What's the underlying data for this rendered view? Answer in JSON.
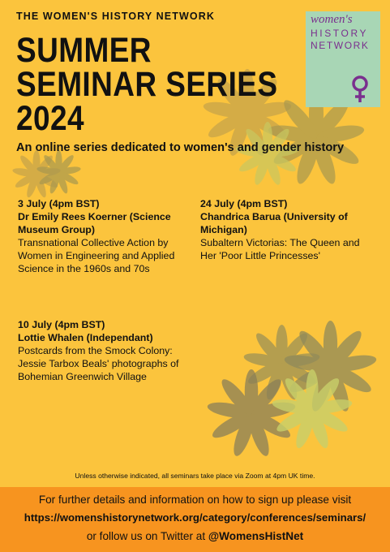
{
  "header": {
    "organization": "THE WOMEN'S HISTORY NETWORK",
    "title_lines": [
      "SUMMER",
      "SEMINAR SERIES",
      "2024"
    ],
    "subtitle": "An online series dedicated to women's and gender history"
  },
  "logo": {
    "lines": [
      "women's",
      "HISTORY",
      "NETWORK"
    ]
  },
  "seminars": [
    {
      "date": "3 July (4pm BST)",
      "speaker": "Dr Emily Rees Koerner (Science Museum Group)",
      "title": "Transnational Collective Action by Women in Engineering and Applied Science in the 1960s and 70s"
    },
    {
      "date": "24 July (4pm BST)",
      "speaker": "Chandrica Barua (University of Michigan)",
      "title": "Subaltern Victorias: The Queen and Her 'Poor Little Princesses'"
    },
    {
      "date": "10 July (4pm BST)",
      "speaker": "Lottie Whalen (Independant)",
      "title": "Postcards from the Smock Colony: Jessie Tarbox Beals' photographs of Bohemian Greenwich Village"
    }
  ],
  "note": "Unless otherwise indicated, all seminars take place via Zoom at 4pm UK time.",
  "footer": {
    "line1": "For further details and information on how to sign up please visit",
    "url": "https://womenshistorynetwork.org/category/conferences/seminars/",
    "line3_text": "or follow us on Twitter at",
    "line3_handle": "@WomensHistNet"
  }
}
